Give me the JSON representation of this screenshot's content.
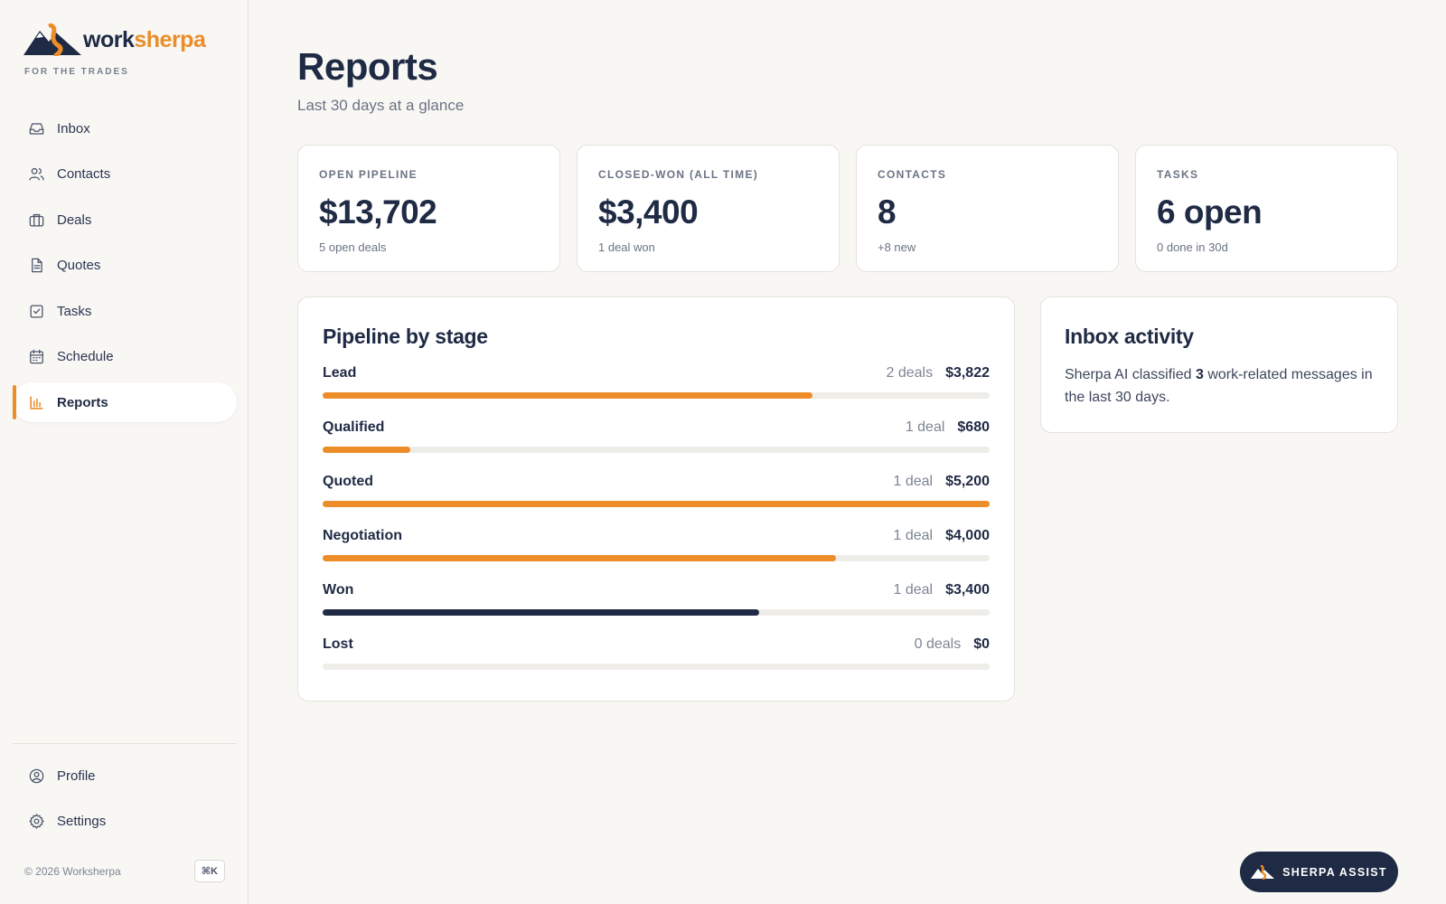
{
  "brand": {
    "name_part1": "work",
    "name_part2": "sherpa",
    "tagline": "FOR THE TRADES",
    "accent_color": "#ec8d2a",
    "navy_color": "#1f2a44"
  },
  "nav": {
    "items": [
      {
        "label": "Inbox",
        "icon": "inbox-icon",
        "active": false
      },
      {
        "label": "Contacts",
        "icon": "users-icon",
        "active": false
      },
      {
        "label": "Deals",
        "icon": "briefcase-icon",
        "active": false
      },
      {
        "label": "Quotes",
        "icon": "document-icon",
        "active": false
      },
      {
        "label": "Tasks",
        "icon": "checkbox-icon",
        "active": false
      },
      {
        "label": "Schedule",
        "icon": "calendar-icon",
        "active": false
      },
      {
        "label": "Reports",
        "icon": "bar-chart-icon",
        "active": true
      }
    ],
    "bottom": [
      {
        "label": "Profile",
        "icon": "user-circle-icon"
      },
      {
        "label": "Settings",
        "icon": "gear-icon"
      }
    ]
  },
  "footer": {
    "copyright": "© 2026 Worksherpa",
    "shortcut": "⌘K"
  },
  "page": {
    "title": "Reports",
    "subtitle": "Last 30 days at a glance"
  },
  "kpis": [
    {
      "label": "OPEN PIPELINE",
      "value": "$13,702",
      "sub": "5 open deals"
    },
    {
      "label": "CLOSED-WON (ALL TIME)",
      "value": "$3,400",
      "sub": "1 deal won"
    },
    {
      "label": "CONTACTS",
      "value": "8",
      "sub": "+8 new"
    },
    {
      "label": "TASKS",
      "value": "6 open",
      "sub": "0 done in 30d"
    }
  ],
  "pipeline": {
    "title": "Pipeline by stage",
    "stages": [
      {
        "name": "Lead",
        "count": "2 deals",
        "value": "$3,822",
        "fraction": 0.735,
        "color": "#ec8d2a"
      },
      {
        "name": "Qualified",
        "count": "1 deal",
        "value": "$680",
        "fraction": 0.131,
        "color": "#ec8d2a"
      },
      {
        "name": "Quoted",
        "count": "1 deal",
        "value": "$5,200",
        "fraction": 1.0,
        "color": "#ec8d2a"
      },
      {
        "name": "Negotiation",
        "count": "1 deal",
        "value": "$4,000",
        "fraction": 0.769,
        "color": "#ec8d2a"
      },
      {
        "name": "Won",
        "count": "1 deal",
        "value": "$3,400",
        "fraction": 0.654,
        "color": "#1f2a44"
      },
      {
        "name": "Lost",
        "count": "0 deals",
        "value": "$0",
        "fraction": 0.0,
        "color": "#ec8d2a"
      }
    ]
  },
  "inbox": {
    "title": "Inbox activity",
    "text_before": "Sherpa AI classified ",
    "count": "3",
    "text_after": " work-related messages in the last 30 days."
  },
  "assist": {
    "label": "SHERPA ASSIST"
  }
}
